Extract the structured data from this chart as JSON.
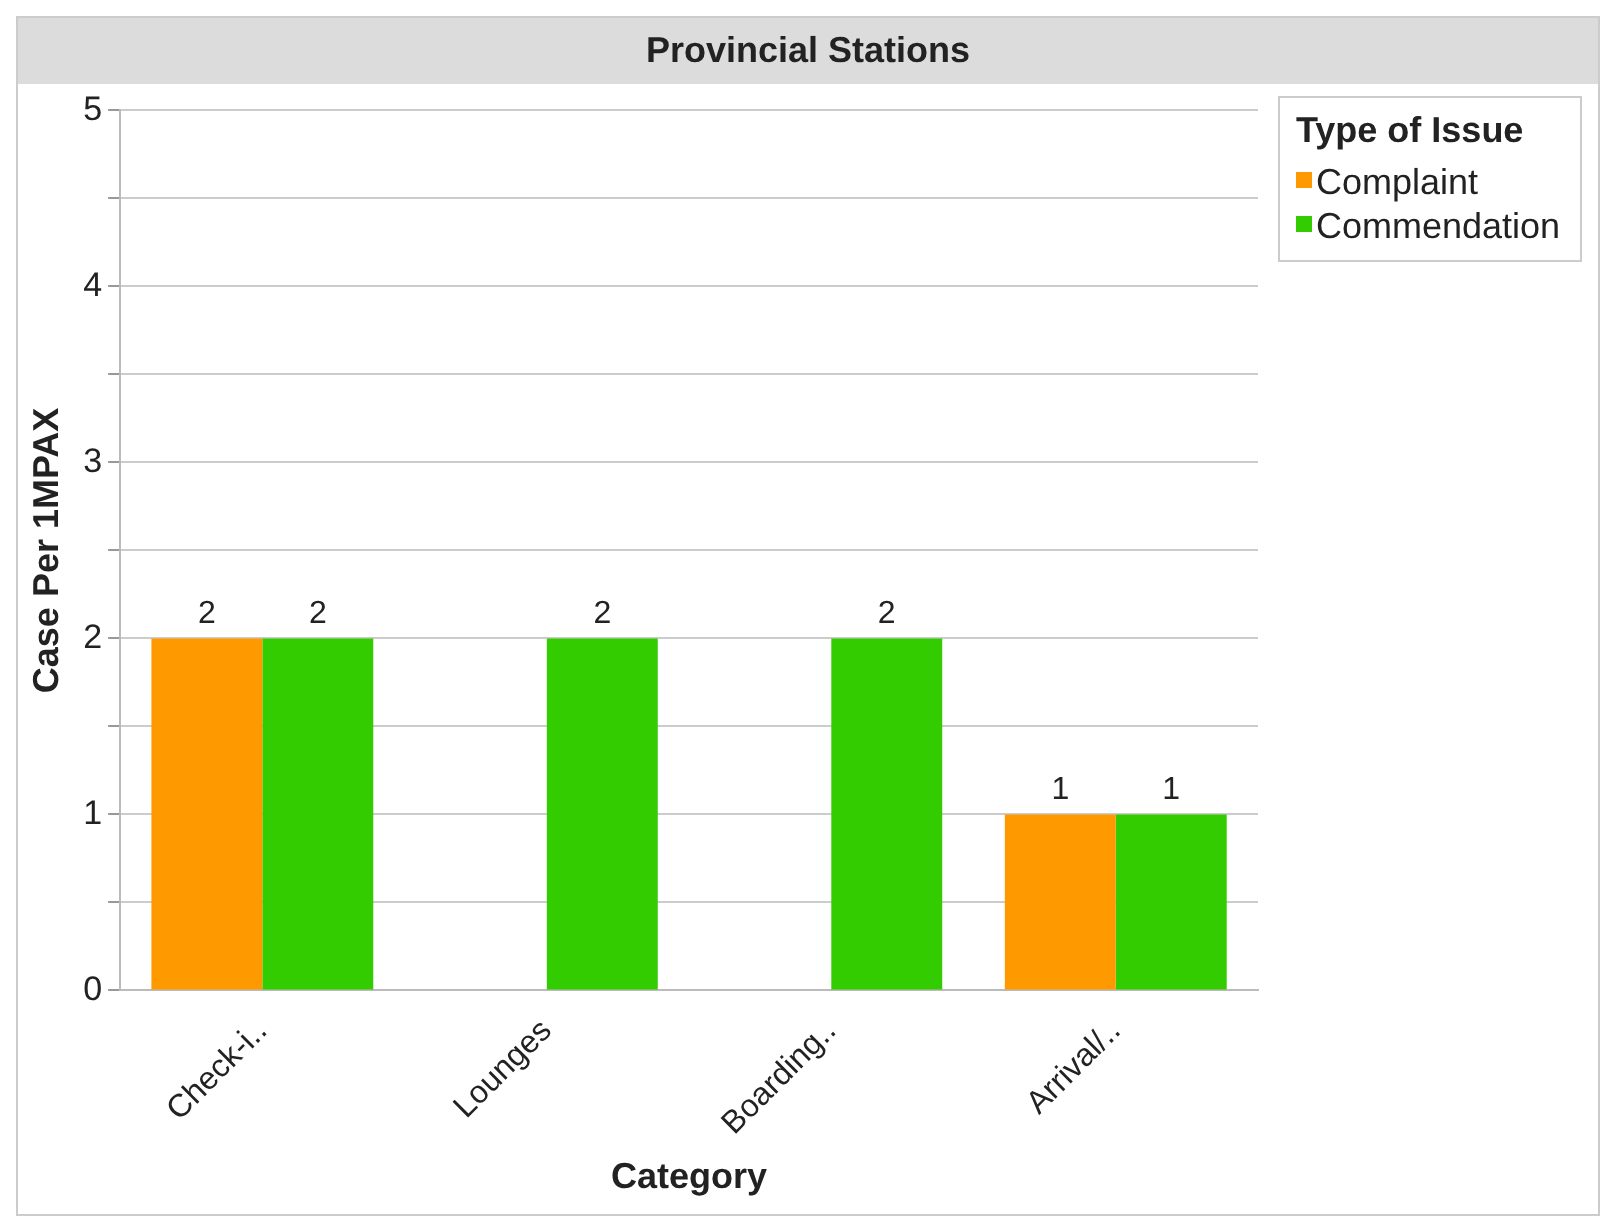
{
  "chart_data": {
    "type": "bar",
    "title": "Provincial Stations",
    "xlabel": "Category",
    "ylabel": "Case Per 1MPAX",
    "legend_title": "Type of Issue",
    "categories": [
      "Check-i..",
      "Lounges",
      "Boarding..",
      "Arrival/.."
    ],
    "series": [
      {
        "name": "Complaint",
        "color": "#ff9900",
        "values": [
          2,
          null,
          null,
          1
        ]
      },
      {
        "name": "Commendation",
        "color": "#33cc00",
        "values": [
          2,
          2,
          2,
          1
        ]
      }
    ],
    "ylim": [
      0,
      5
    ],
    "yticks": [
      0,
      {
        "value": 0.5,
        "label": null
      },
      1,
      {
        "value": 1.5,
        "label": null
      },
      2,
      {
        "value": 2.5,
        "label": null
      },
      3,
      {
        "value": 3.5,
        "label": null
      },
      4,
      {
        "value": 4.5,
        "label": null
      },
      5
    ],
    "grid": "y",
    "legend": "top right",
    "data_labels": true
  }
}
